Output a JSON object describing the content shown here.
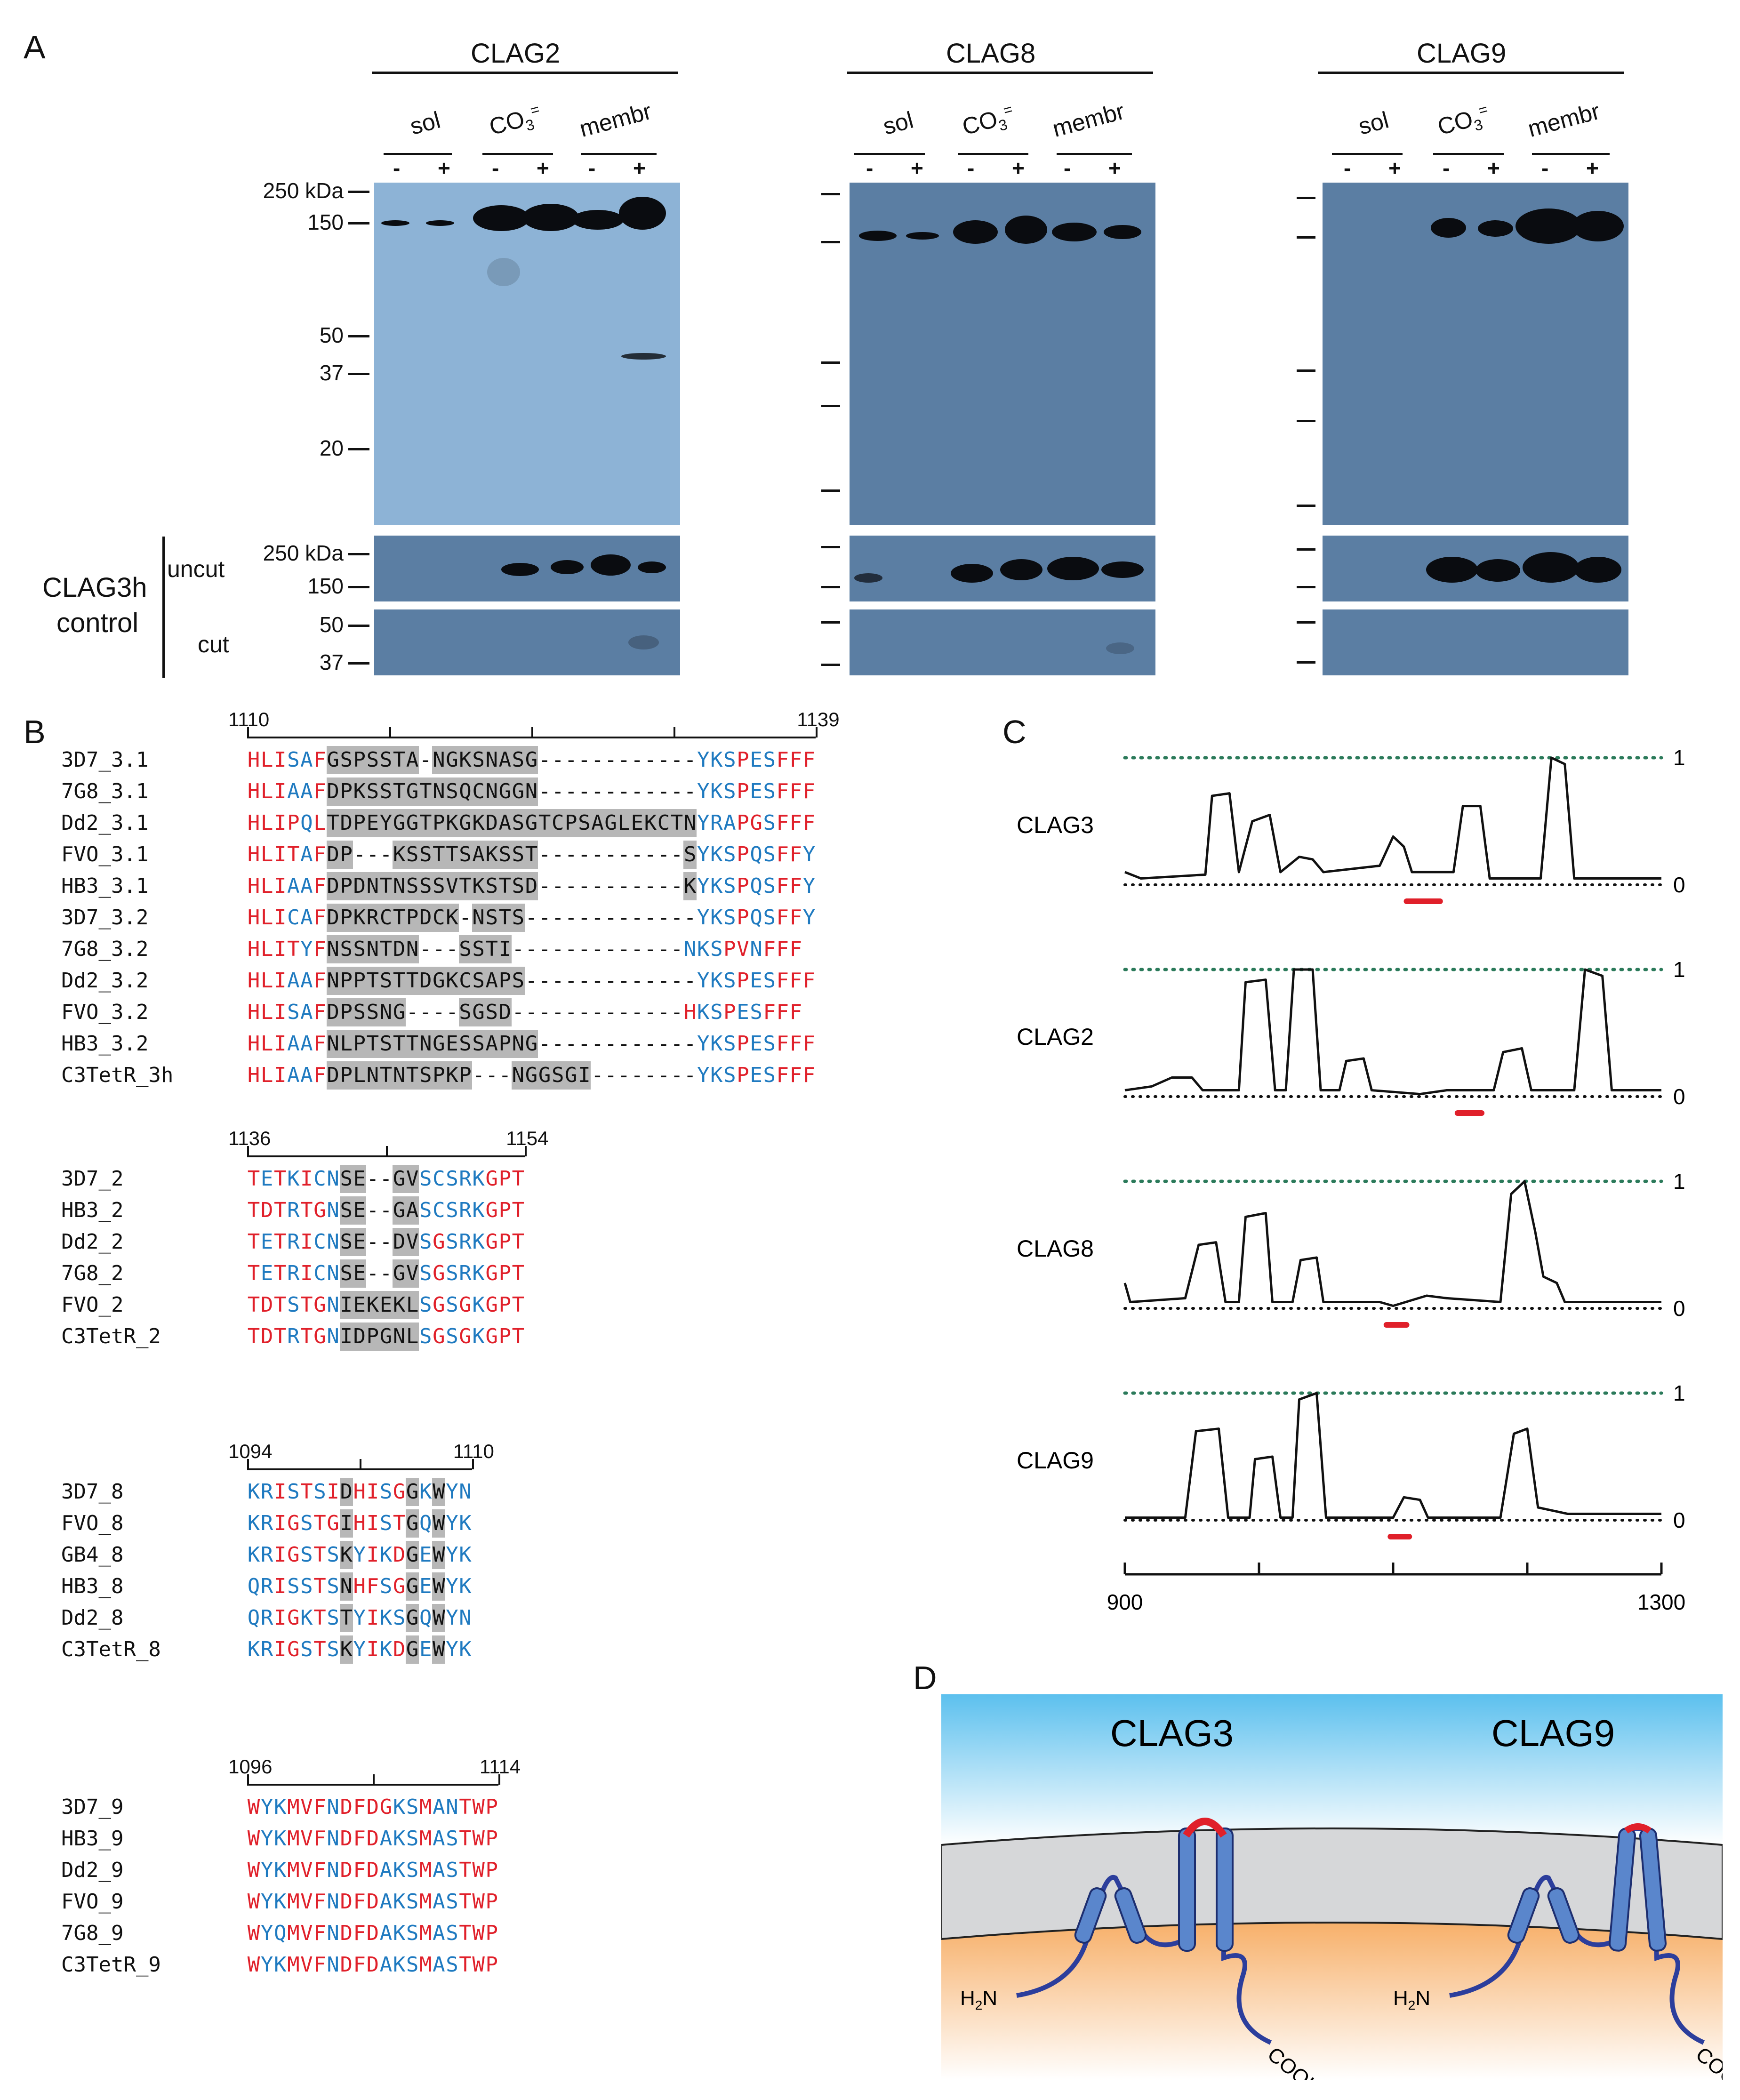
{
  "panelA": {
    "label": "A",
    "proteins": [
      "CLAG2",
      "CLAG8",
      "CLAG9"
    ],
    "lanes": [
      "sol",
      "CO3=",
      "membr"
    ],
    "lane_display": {
      "sol": "sol",
      "co3_main": "CO",
      "co3_sub": "3",
      "co3_sup": "=",
      "membr": "membr"
    },
    "treatments": [
      "-",
      "+"
    ],
    "mw_markers_top": [
      "250 kDa",
      "150",
      "50",
      "37",
      "20"
    ],
    "mw_markers_bottom": [
      "250 kDa",
      "150",
      "50",
      "37"
    ],
    "control_label_1": "CLAG3h",
    "control_label_2": "control",
    "uncut": "uncut",
    "cut": "cut"
  },
  "panelB": {
    "label": "B",
    "blocks": [
      {
        "start": "1110",
        "end": "1139",
        "rows": [
          {
            "name": "3D7_3.1",
            "seq": "HLISAFGSPSSTA-NGKSNASG------------YKSPESFFF"
          },
          {
            "name": "7G8_3.1",
            "seq": "HLIAAFDPKSSTGTNSQCNGGN------------YKSPESFFF"
          },
          {
            "name": "Dd2_3.1",
            "seq": "HLIPQLTDPEYGGTPKGKDASGTCPSAGLEKCTNYRAPGSFFF"
          },
          {
            "name": "FVO_3.1",
            "seq": "HLITAFDP---KSSTTSAKSST-----------SYKSPQSFFY"
          },
          {
            "name": "HB3_3.1",
            "seq": "HLIAAFDPDNTNSSSVTKSTSD-----------KYKSPQSFFY"
          },
          {
            "name": "3D7_3.2",
            "seq": "HLICAFDPKRCTPDCK-NSTS-------------YKSPQSFFY"
          },
          {
            "name": "7G8_3.2",
            "seq": "HLITYFNSSNTDN---SSTI-------------NKSPVNFFF"
          },
          {
            "name": "Dd2_3.2",
            "seq": "HLIAAFNPPTSTTDGKCSAPS-------------YKSPESFFF"
          },
          {
            "name": "FVO_3.2",
            "seq": "HLISAFDPSSNG----SGSD-------------HKSPESFFF"
          },
          {
            "name": "HB3_3.2",
            "seq": "HLIAAFNLPTSTTNGESSAPNG------------YKSPESFFF"
          },
          {
            "name": "C3TetR_3h",
            "seq": "HLIAAFDPLNTNTSPKP---NGGSGI--------YKSPESFFF"
          }
        ]
      },
      {
        "start": "1136",
        "end": "1154",
        "rows": [
          {
            "name": "3D7_2",
            "seq": "TETKICNSE--GVSCSRKGPT"
          },
          {
            "name": "HB3_2",
            "seq": "TDTRTGNSE--GASCSRKGPT"
          },
          {
            "name": "Dd2_2",
            "seq": "TETRICNSE--DVSGSRKGPT"
          },
          {
            "name": "7G8_2",
            "seq": "TETRICNSE--GVSGSRKGPT"
          },
          {
            "name": "FVO_2",
            "seq": "TDTSTGNIEKEKLSGSGKGPT"
          },
          {
            "name": "C3TetR_2",
            "seq": "TDTRTGNIDPGNLSGSGKGPT"
          }
        ]
      },
      {
        "start": "1094",
        "end": "1110",
        "rows": [
          {
            "name": "3D7_8",
            "seq": "KRISTSIDHISGGKWYN"
          },
          {
            "name": "FVO_8",
            "seq": "KRIGSTGIHISTGQWYK"
          },
          {
            "name": "GB4_8",
            "seq": "KRIGSTSKYIKDGEWYK"
          },
          {
            "name": "HB3_8",
            "seq": "QRISSTSNHFSGGEWYK"
          },
          {
            "name": "Dd2_8",
            "seq": "QRIGKTSTYIKSGQWYN"
          },
          {
            "name": "C3TetR_8",
            "seq": "KRIGSTSKYIKDGEWYK"
          }
        ]
      },
      {
        "start": "1096",
        "end": "1114",
        "rows": [
          {
            "name": "3D7_9",
            "seq": "WYKMVFNDFDGKSMANTWP"
          },
          {
            "name": "HB3_9",
            "seq": "WYKMVFNDFDAKSMASTWP"
          },
          {
            "name": "Dd2_9",
            "seq": "WYKMVFNDFDAKSMASTWP"
          },
          {
            "name": "FVO_9",
            "seq": "WYKMVFNDFDAKSMASTWP"
          },
          {
            "name": "7G8_9",
            "seq": "WYQMVFNDFDAKSMASTWP"
          },
          {
            "name": "C3TetR_9",
            "seq": "WYKMVFNDFDAKSMASTWP"
          }
        ]
      }
    ]
  },
  "panelC": {
    "label": "C",
    "chart_data": {
      "type": "line",
      "xlabel": "",
      "x_range": [
        900,
        1300
      ],
      "x_ticks": [
        "900",
        "1300"
      ],
      "y_ticks": [
        "1",
        "0"
      ],
      "series": [
        {
          "name": "CLAG3",
          "points": [
            [
              900,
              0.1
            ],
            [
              912,
              0.05
            ],
            [
              960,
              0.08
            ],
            [
              965,
              0.7
            ],
            [
              978,
              0.72
            ],
            [
              985,
              0.1
            ],
            [
              995,
              0.5
            ],
            [
              1008,
              0.55
            ],
            [
              1016,
              0.1
            ],
            [
              1030,
              0.22
            ],
            [
              1040,
              0.2
            ],
            [
              1048,
              0.1
            ],
            [
              1090,
              0.15
            ],
            [
              1100,
              0.38
            ],
            [
              1108,
              0.3
            ],
            [
              1114,
              0.1
            ],
            [
              1145,
              0.1
            ],
            [
              1152,
              0.62
            ],
            [
              1165,
              0.62
            ],
            [
              1172,
              0.05
            ],
            [
              1210,
              0.05
            ],
            [
              1218,
              1.0
            ],
            [
              1228,
              0.95
            ],
            [
              1235,
              0.05
            ],
            [
              1300,
              0.05
            ]
          ],
          "red_bar": [
            1110,
            1135
          ]
        },
        {
          "name": "CLAG2",
          "points": [
            [
              900,
              0.05
            ],
            [
              920,
              0.08
            ],
            [
              935,
              0.15
            ],
            [
              950,
              0.15
            ],
            [
              958,
              0.05
            ],
            [
              985,
              0.05
            ],
            [
              990,
              0.9
            ],
            [
              1005,
              0.92
            ],
            [
              1012,
              0.05
            ],
            [
              1020,
              0.05
            ],
            [
              1026,
              1.0
            ],
            [
              1040,
              1.0
            ],
            [
              1046,
              0.05
            ],
            [
              1060,
              0.05
            ],
            [
              1065,
              0.28
            ],
            [
              1078,
              0.3
            ],
            [
              1084,
              0.05
            ],
            [
              1120,
              0.02
            ],
            [
              1140,
              0.05
            ],
            [
              1175,
              0.05
            ],
            [
              1182,
              0.35
            ],
            [
              1196,
              0.38
            ],
            [
              1203,
              0.05
            ],
            [
              1235,
              0.05
            ],
            [
              1243,
              1.0
            ],
            [
              1256,
              0.95
            ],
            [
              1263,
              0.05
            ],
            [
              1300,
              0.05
            ]
          ],
          "red_bar": [
            1148,
            1166
          ]
        },
        {
          "name": "CLAG8",
          "points": [
            [
              900,
              0.2
            ],
            [
              904,
              0.05
            ],
            [
              945,
              0.08
            ],
            [
              955,
              0.5
            ],
            [
              968,
              0.52
            ],
            [
              975,
              0.05
            ],
            [
              985,
              0.05
            ],
            [
              990,
              0.72
            ],
            [
              1005,
              0.75
            ],
            [
              1010,
              0.05
            ],
            [
              1025,
              0.05
            ],
            [
              1031,
              0.38
            ],
            [
              1043,
              0.4
            ],
            [
              1048,
              0.05
            ],
            [
              1090,
              0.05
            ],
            [
              1100,
              0.02
            ],
            [
              1125,
              0.1
            ],
            [
              1140,
              0.08
            ],
            [
              1180,
              0.05
            ],
            [
              1188,
              0.9
            ],
            [
              1198,
              1.0
            ],
            [
              1206,
              0.6
            ],
            [
              1212,
              0.25
            ],
            [
              1222,
              0.2
            ],
            [
              1228,
              0.05
            ],
            [
              1300,
              0.05
            ]
          ],
          "red_bar": [
            1095,
            1110
          ]
        },
        {
          "name": "CLAG9",
          "points": [
            [
              900,
              0.02
            ],
            [
              945,
              0.02
            ],
            [
              953,
              0.7
            ],
            [
              970,
              0.72
            ],
            [
              977,
              0.02
            ],
            [
              993,
              0.02
            ],
            [
              997,
              0.48
            ],
            [
              1010,
              0.5
            ],
            [
              1016,
              0.02
            ],
            [
              1025,
              0.02
            ],
            [
              1030,
              0.95
            ],
            [
              1043,
              1.0
            ],
            [
              1050,
              0.02
            ],
            [
              1100,
              0.02
            ],
            [
              1108,
              0.18
            ],
            [
              1120,
              0.16
            ],
            [
              1126,
              0.02
            ],
            [
              1180,
              0.02
            ],
            [
              1190,
              0.68
            ],
            [
              1200,
              0.72
            ],
            [
              1208,
              0.1
            ],
            [
              1230,
              0.05
            ],
            [
              1300,
              0.05
            ]
          ],
          "red_bar": [
            1098,
            1112
          ]
        }
      ]
    }
  },
  "panelD": {
    "label": "D",
    "proteins": [
      "CLAG3",
      "CLAG9"
    ],
    "n_term": "H2N",
    "n_term_main_a": "H",
    "n_term_sub": "2",
    "n_term_main_b": "N",
    "c_term": "COOH"
  },
  "colors": {
    "red": "#e0202a",
    "blue": "#1f7ac0",
    "gray": "#b7b7b7",
    "blot": "#4d6a88",
    "green": "#2b7a5a"
  }
}
